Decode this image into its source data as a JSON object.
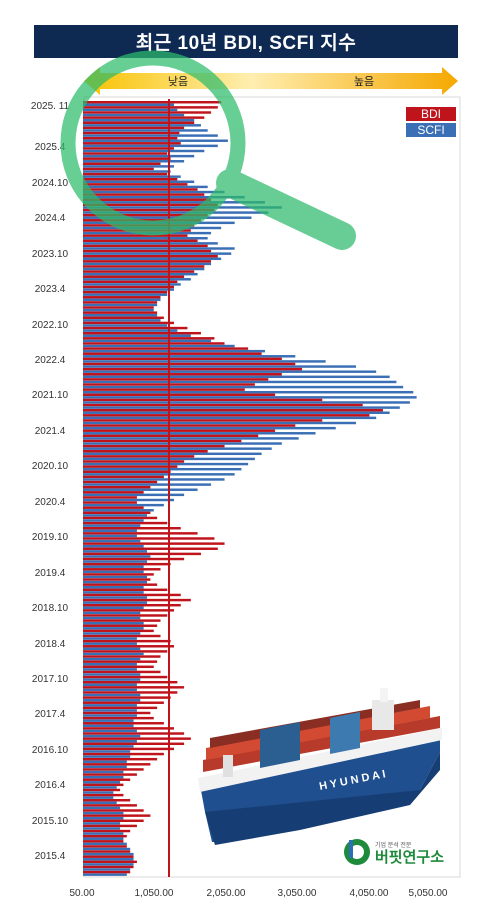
{
  "title": "최근 10년 BDI, SCFI 지수",
  "scale_arrow": {
    "low_label": "낮음",
    "high_label": "높음"
  },
  "legend": {
    "bdi": "BDI",
    "scfi": "SCFI"
  },
  "brand": {
    "tagline": "기업 분석 전문",
    "name": "버핏연구소"
  },
  "colors": {
    "bdi": "#c0141c",
    "scfi": "#3a6fb5",
    "marker_line": "#c0141c",
    "title_bg": "#0e2a52"
  },
  "chart_data": {
    "type": "bar",
    "orientation": "horizontal",
    "title": "최근 10년 BDI, SCFI 지수",
    "xlabel": "",
    "ylabel": "",
    "xlim": [
      50,
      5050
    ],
    "x_ticks": [
      "50.00",
      "1,050.00",
      "2,050.00",
      "3,050.00",
      "4,050.00",
      "5,050.00"
    ],
    "y_ticks": [
      "2025. 11",
      "2025.4",
      "2024.10",
      "2024.4",
      "2023.10",
      "2023.4",
      "2022.10",
      "2022.4",
      "2021.10",
      "2021.4",
      "2020.10",
      "2020.4",
      "2019.10",
      "2019.4",
      "2018.10",
      "2018.4",
      "2017.10",
      "2017.4",
      "2016.10",
      "2016.4",
      "2015.10",
      "2015.4"
    ],
    "reference_line": 1300,
    "legend": "top-right",
    "series": [
      {
        "name": "BDI",
        "values": [
          2100,
          2050,
          1950,
          1850,
          1700,
          1550,
          1480,
          1450,
          1500,
          1400,
          1300,
          1350,
          1200,
          1100,
          1300,
          1450,
          1600,
          1750,
          1850,
          1950,
          2050,
          2000,
          1900,
          1800,
          1700,
          1650,
          1600,
          1750,
          1900,
          1950,
          2050,
          1950,
          1850,
          1700,
          1550,
          1450,
          1400,
          1300,
          1200,
          1150,
          1100,
          1150,
          1250,
          1400,
          1600,
          1800,
          2000,
          2150,
          2500,
          2700,
          3000,
          3200,
          3300,
          3000,
          2800,
          2600,
          2450,
          2900,
          3600,
          4200,
          4500,
          4300,
          3600,
          3200,
          2900,
          2650,
          2400,
          2150,
          1900,
          1700,
          1550,
          1450,
          1350,
          1250,
          1150,
          1050,
          950,
          850,
          850,
          950,
          1050,
          1150,
          1300,
          1500,
          1750,
          2000,
          2150,
          2050,
          1800,
          1550,
          1350,
          1200,
          1100,
          1050,
          1150,
          1300,
          1500,
          1650,
          1500,
          1400,
          1300,
          1200,
          1150,
          1100,
          1200,
          1350,
          1400,
          1300,
          1200,
          1150,
          1100,
          1200,
          1300,
          1450,
          1550,
          1450,
          1350,
          1250,
          1150,
          1050,
          1100,
          1250,
          1400,
          1550,
          1650,
          1550,
          1400,
          1250,
          1150,
          1050,
          950,
          850,
          750,
          650,
          600,
          650,
          750,
          850,
          950,
          1050,
          950,
          850,
          750,
          700,
          650,
          700,
          750,
          800,
          850,
          800,
          750
        ]
      },
      {
        "name": "SCFI",
        "values": [
          1400,
          1450,
          1550,
          1700,
          1800,
          1900,
          2050,
          2200,
          2050,
          1850,
          1700,
          1550,
          1400,
          1350,
          1500,
          1700,
          1900,
          2150,
          2450,
          2750,
          3000,
          2800,
          2550,
          2300,
          2100,
          1950,
          1900,
          2050,
          2300,
          2250,
          2100,
          1950,
          1850,
          1750,
          1650,
          1500,
          1400,
          1300,
          1200,
          1150,
          1100,
          1150,
          1200,
          1300,
          1450,
          1650,
          1950,
          2300,
          2750,
          3200,
          3650,
          4100,
          4400,
          4600,
          4700,
          4800,
          4950,
          5000,
          4900,
          4750,
          4600,
          4400,
          4100,
          3800,
          3500,
          3250,
          3000,
          2850,
          2700,
          2600,
          2500,
          2400,
          2300,
          2150,
          1950,
          1750,
          1550,
          1400,
          1250,
          1100,
          1000,
          950,
          900,
          850,
          850,
          900,
          950,
          1000,
          1050,
          1000,
          950,
          950,
          1000,
          1000,
          950,
          950,
          1000,
          1000,
          950,
          900,
          900,
          950,
          950,
          900,
          850,
          850,
          900,
          950,
          900,
          850,
          850,
          900,
          900,
          850,
          850,
          900,
          900,
          850,
          850,
          850,
          800,
          800,
          850,
          900,
          850,
          800,
          750,
          750,
          700,
          700,
          650,
          650,
          600,
          550,
          500,
          500,
          550,
          600,
          650,
          650,
          600,
          600,
          650,
          650,
          700,
          750,
          800,
          800,
          800,
          750,
          700,
          700
        ]
      }
    ]
  }
}
